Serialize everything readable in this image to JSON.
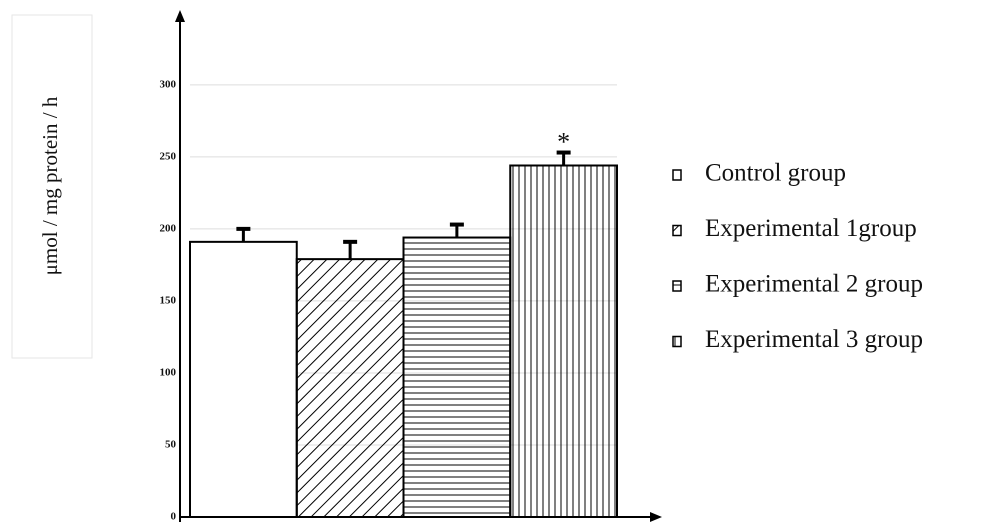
{
  "chart_data": {
    "type": "bar",
    "ylabel": "μmol / mg protein / h",
    "ylim": [
      0,
      345
    ],
    "yticks": [
      0,
      50,
      100,
      150,
      200,
      250,
      300
    ],
    "grid": true,
    "series": [
      {
        "name": "Control group",
        "color": "#000000",
        "pattern": "none",
        "values": [
          191
        ],
        "errors": [
          9
        ]
      },
      {
        "name": "Experimental 1group",
        "color": "#000000",
        "pattern": "diagonal",
        "values": [
          179
        ],
        "errors": [
          12
        ]
      },
      {
        "name": "Experimental 2 group",
        "color": "#000000",
        "pattern": "horizontal",
        "values": [
          194
        ],
        "errors": [
          9
        ]
      },
      {
        "name": "Experimental 3 group",
        "color": "#000000",
        "pattern": "vertical",
        "values": [
          244
        ],
        "errors": [
          9
        ]
      }
    ],
    "annotations": [
      {
        "text": "*",
        "series": 3
      }
    ]
  }
}
